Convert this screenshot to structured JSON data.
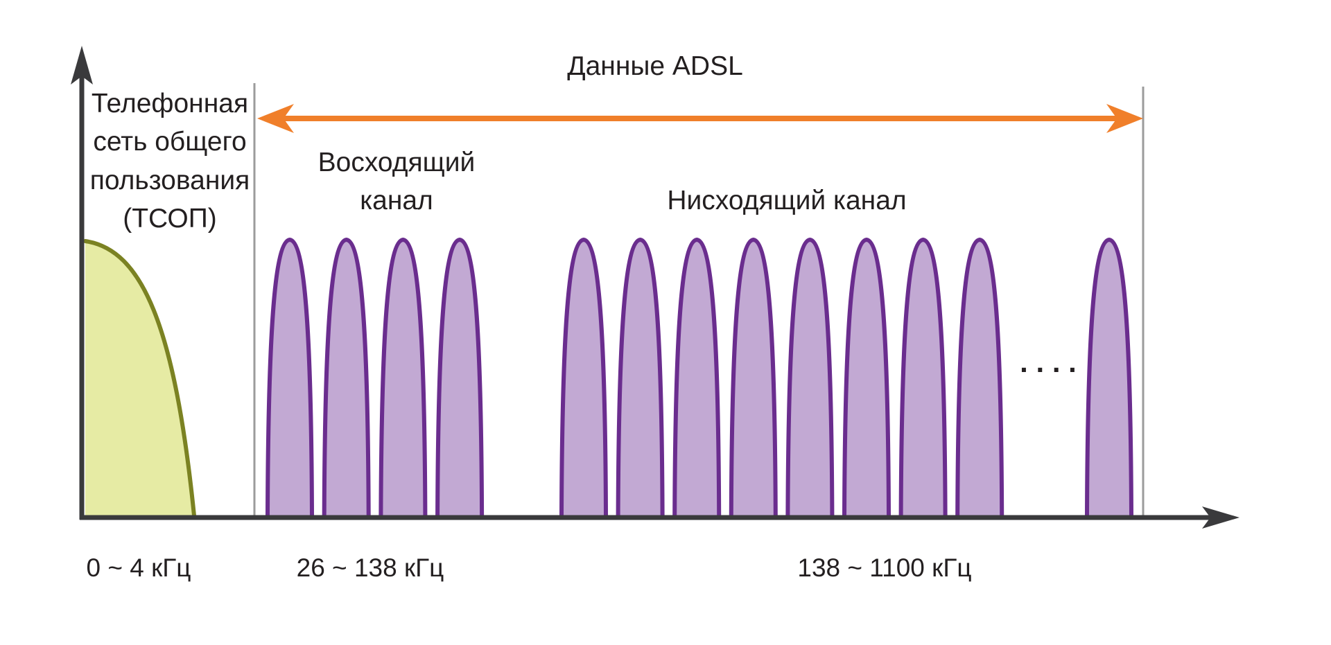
{
  "diagram": {
    "adsl_label": "Данные ADSL",
    "pstn_label_lines": [
      "Телефонная",
      "сеть общего",
      "пользования",
      "(ТСОП)"
    ],
    "upstream_label_lines": [
      "Восходящий",
      "канал"
    ],
    "downstream_label": "Нисходящий канал",
    "ellipsis": ". . . .",
    "pstn_range": "0 ~ 4 кГц",
    "upstream_range": "26 ~ 138 кГц",
    "downstream_range": "138 ~ 1100 кГц",
    "upstream_carrier_count": 4,
    "downstream_carrier_count": 9,
    "colors": {
      "axis": "#3a3a3c",
      "adsl_arrow": "#f07f2a",
      "boundary_line": "#9b9b9b",
      "carrier_stroke": "#6a2d8e",
      "carrier_fill": "#c2a9d3",
      "pstn_stroke": "#7b8222",
      "pstn_fill": "#e6eba4"
    }
  }
}
